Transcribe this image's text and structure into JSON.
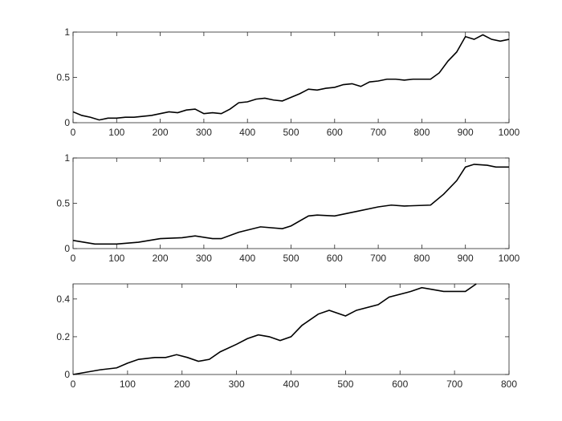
{
  "chart_data": [
    {
      "type": "line",
      "color": "#000000",
      "x": [
        0,
        20,
        40,
        60,
        80,
        100,
        120,
        140,
        160,
        180,
        200,
        220,
        240,
        260,
        280,
        300,
        320,
        340,
        360,
        380,
        400,
        420,
        440,
        460,
        480,
        500,
        520,
        540,
        560,
        580,
        600,
        620,
        640,
        660,
        680,
        700,
        720,
        740,
        760,
        780,
        800,
        820,
        840,
        860,
        880,
        900,
        920,
        940,
        960,
        980,
        1000
      ],
      "values": [
        0.12,
        0.08,
        0.06,
        0.03,
        0.05,
        0.05,
        0.06,
        0.06,
        0.07,
        0.08,
        0.1,
        0.12,
        0.11,
        0.14,
        0.15,
        0.1,
        0.11,
        0.1,
        0.15,
        0.22,
        0.23,
        0.26,
        0.27,
        0.25,
        0.24,
        0.28,
        0.32,
        0.37,
        0.36,
        0.38,
        0.39,
        0.42,
        0.43,
        0.4,
        0.45,
        0.46,
        0.48,
        0.48,
        0.47,
        0.48,
        0.48,
        0.48,
        0.55,
        0.68,
        0.78,
        0.95,
        0.92,
        0.97,
        0.92,
        0.9,
        0.92
      ],
      "xlim": [
        0,
        1000
      ],
      "xticks": [
        0,
        100,
        200,
        300,
        400,
        500,
        600,
        700,
        800,
        900,
        1000
      ],
      "ylim": [
        0,
        1
      ],
      "yticks": [
        0,
        0.5,
        1
      ]
    },
    {
      "type": "line",
      "color": "#000000",
      "x": [
        0,
        50,
        100,
        150,
        200,
        250,
        280,
        320,
        340,
        380,
        430,
        480,
        500,
        540,
        560,
        600,
        650,
        700,
        730,
        760,
        820,
        850,
        880,
        900,
        920,
        950,
        970,
        1000
      ],
      "values": [
        0.09,
        0.05,
        0.05,
        0.07,
        0.11,
        0.12,
        0.14,
        0.11,
        0.11,
        0.18,
        0.24,
        0.22,
        0.25,
        0.36,
        0.37,
        0.36,
        0.41,
        0.46,
        0.48,
        0.47,
        0.48,
        0.6,
        0.75,
        0.9,
        0.93,
        0.92,
        0.9,
        0.9
      ],
      "xlim": [
        0,
        1000
      ],
      "xticks": [
        0,
        100,
        200,
        300,
        400,
        500,
        600,
        700,
        800,
        900,
        1000
      ],
      "ylim": [
        0,
        1
      ],
      "yticks": [
        0,
        0.5,
        1
      ]
    },
    {
      "type": "line",
      "color": "#000000",
      "x": [
        0,
        50,
        80,
        100,
        120,
        150,
        170,
        190,
        210,
        230,
        250,
        270,
        300,
        320,
        340,
        360,
        380,
        400,
        420,
        450,
        470,
        500,
        520,
        560,
        580,
        620,
        640,
        660,
        680,
        720,
        740
      ],
      "values": [
        0,
        0.025,
        0.035,
        0.06,
        0.08,
        0.09,
        0.09,
        0.105,
        0.09,
        0.07,
        0.08,
        0.12,
        0.16,
        0.19,
        0.21,
        0.2,
        0.18,
        0.2,
        0.26,
        0.32,
        0.34,
        0.31,
        0.34,
        0.37,
        0.41,
        0.44,
        0.46,
        0.45,
        0.44,
        0.44,
        0.48
      ],
      "xlim": [
        0,
        800
      ],
      "xticks": [
        0,
        100,
        200,
        300,
        400,
        500,
        600,
        700,
        800
      ],
      "ylim": [
        0,
        0.48
      ],
      "yticks": [
        0,
        0.2,
        0.4
      ]
    }
  ]
}
